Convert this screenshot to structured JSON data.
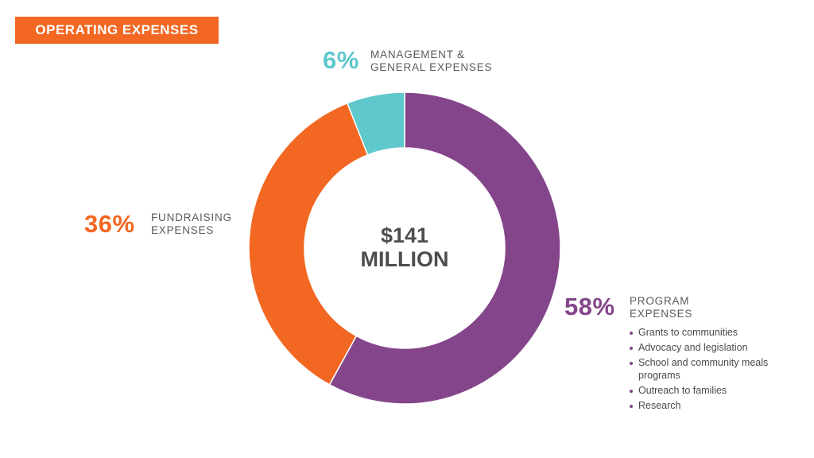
{
  "title": "OPERATING EXPENSES",
  "center": {
    "line1": "$141",
    "line2": "MILLION"
  },
  "colors": {
    "program": "#84458a",
    "fundraising": "#f26722",
    "management": "#5fc8cc",
    "title_bg": "#f26722"
  },
  "labels": {
    "management": {
      "pct": "6%",
      "line1": "MANAGEMENT &",
      "line2": "GENERAL EXPENSES"
    },
    "fundraising": {
      "pct": "36%",
      "line1": "FUNDRAISING",
      "line2": "EXPENSES"
    },
    "program": {
      "pct": "58%",
      "line1": "PROGRAM",
      "line2": "EXPENSES"
    }
  },
  "program_items": [
    "Grants to communities",
    "Advocacy and legislation",
    "School and community meals programs",
    "Outreach to families",
    "Research"
  ],
  "chart_data": {
    "type": "pie",
    "title": "OPERATING EXPENSES",
    "total": "$141 MILLION",
    "categories": [
      "PROGRAM EXPENSES",
      "FUNDRAISING EXPENSES",
      "MANAGEMENT & GENERAL EXPENSES"
    ],
    "values": [
      58,
      36,
      6
    ],
    "unit": "%"
  }
}
